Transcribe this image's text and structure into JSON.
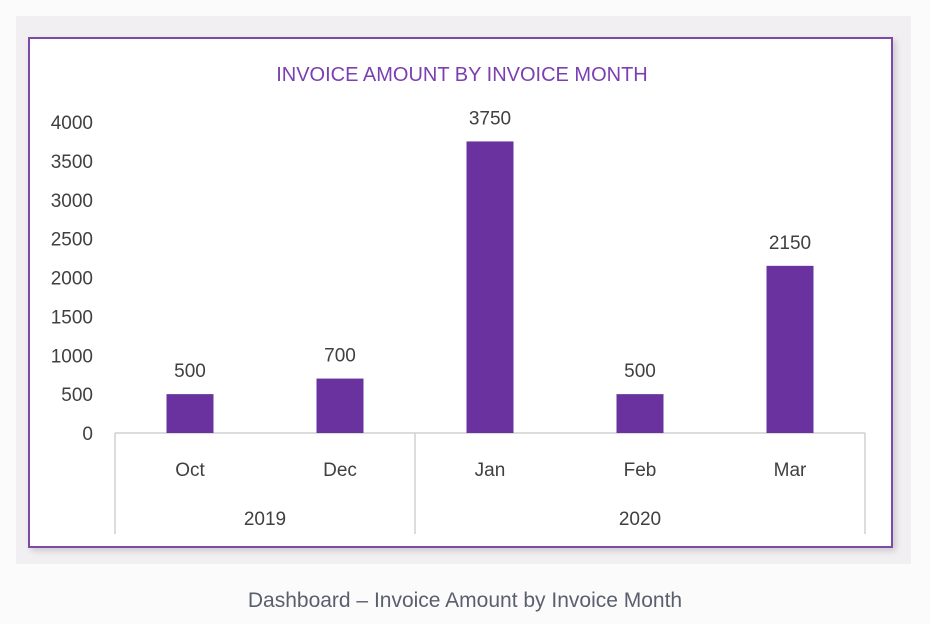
{
  "caption": "Dashboard – Invoice Amount by Invoice Month",
  "colors": {
    "bar": "#6a329f",
    "title": "#7b3fb0",
    "frame": "#7d4aa8",
    "text": "#404040",
    "axis": "#d0d0d0"
  },
  "chart_data": {
    "type": "bar",
    "title": "INVOICE AMOUNT BY INVOICE MONTH",
    "xlabel": "",
    "ylabel": "",
    "ylim": [
      0,
      4000
    ],
    "yticks": [
      0,
      500,
      1000,
      1500,
      2000,
      2500,
      3000,
      3500,
      4000
    ],
    "grid": false,
    "categories": [
      "Oct",
      "Dec",
      "Jan",
      "Feb",
      "Mar"
    ],
    "groups": [
      {
        "label": "2019",
        "categories": [
          "Oct",
          "Dec"
        ]
      },
      {
        "label": "2020",
        "categories": [
          "Jan",
          "Feb",
          "Mar"
        ]
      }
    ],
    "values": [
      500,
      700,
      3750,
      500,
      2150
    ],
    "data_labels": true
  }
}
